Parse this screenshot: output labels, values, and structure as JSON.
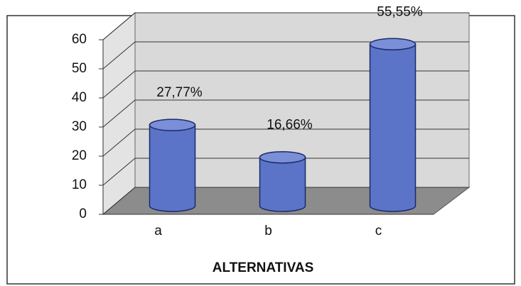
{
  "chart_data": {
    "type": "bar",
    "categories": [
      "a",
      "b",
      "c"
    ],
    "values": [
      27.77,
      16.66,
      55.55
    ],
    "value_labels": [
      "27,77%",
      "16,66%",
      "55,55%"
    ],
    "color": "#5b74c8",
    "ylim": [
      0,
      60
    ],
    "yticks": [
      0,
      10,
      20,
      30,
      40,
      50,
      60
    ],
    "grid": true,
    "x_label": "ALTERNATIVAS"
  }
}
